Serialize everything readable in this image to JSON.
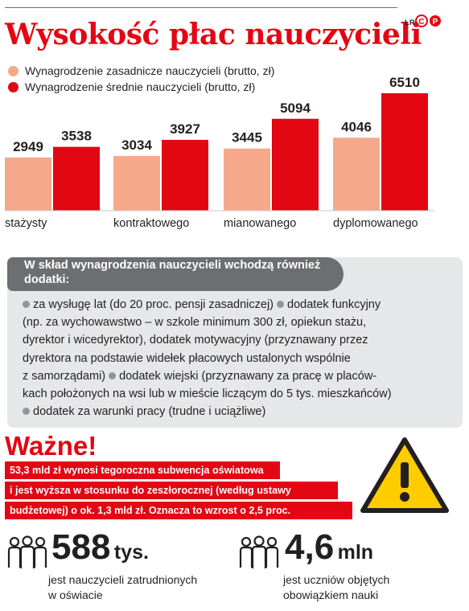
{
  "title": "Wysokość płac nauczycieli",
  "credit": "ŁR",
  "credit_logo": "PAP",
  "legend": [
    {
      "label": "Wynagrodzenie zasadnicze nauczycieli (brutto, zł)",
      "color": "#f5a98a"
    },
    {
      "label": "Wynagrodzenie średnie nauczycieli (brutto, zł)",
      "color": "#e30613"
    }
  ],
  "chart_data": {
    "type": "bar",
    "categories": [
      "stażysty",
      "kontraktowego",
      "mianowanego",
      "dyplomowanego"
    ],
    "series": [
      {
        "name": "Wynagrodzenie zasadnicze nauczycieli (brutto, zł)",
        "values": [
          2949,
          3034,
          3445,
          4046
        ],
        "color": "#f5a98a"
      },
      {
        "name": "Wynagrodzenie średnie nauczycieli (brutto, zł)",
        "values": [
          3538,
          3927,
          5094,
          6510
        ],
        "color": "#e30613"
      }
    ],
    "ylim": [
      0,
      6510
    ],
    "grid": false,
    "legend_position": "top-left"
  },
  "info": {
    "header": "W skład wynagrodzenia nauczycieli wchodzą również dodatki:",
    "lines": [
      "za wysługę lat (do 20 proc. pensji zasadniczej)",
      "dodatek funkcyjny",
      "(np. za wychowawstwo – w szkole minimum 300 zł, opiekun stażu,",
      "dyrektor i wicedyrektor), dodatek motywacyjny (przyznawany przez",
      "dyrektora na podstawie widełek płacowych ustalonych wspólnie",
      "z samorządami)",
      "dodatek wiejski (przyznawany za pracę w placów-",
      "kach położonych na wsi lub w mieście liczącym do 5 tys. mieszkańców)",
      "dodatek za warunki pracy (trudne i uciążliwe)"
    ]
  },
  "wazne": {
    "title": "Ważne!",
    "lines": [
      "53,3 mld zł wynosi tegoroczna subwencja oświatowa",
      "i jest wyższa w stosunku do zeszłorocznej (według ustawy",
      "budżetowej) o ok. 1,3 mld zł. Oznacza to wzrost o 2,5 proc."
    ],
    "icon": "warning-triangle-icon"
  },
  "stats": [
    {
      "number": "588",
      "unit": "tys.",
      "caption_1": "jest nauczycieli zatrudnionych",
      "caption_2": "w oświacie",
      "icon": "people-group-icon"
    },
    {
      "number": "4,6",
      "unit": "mln",
      "caption_1": "jest uczniów objętych",
      "caption_2": "obowiązkiem nauki",
      "icon": "people-group-icon"
    }
  ]
}
